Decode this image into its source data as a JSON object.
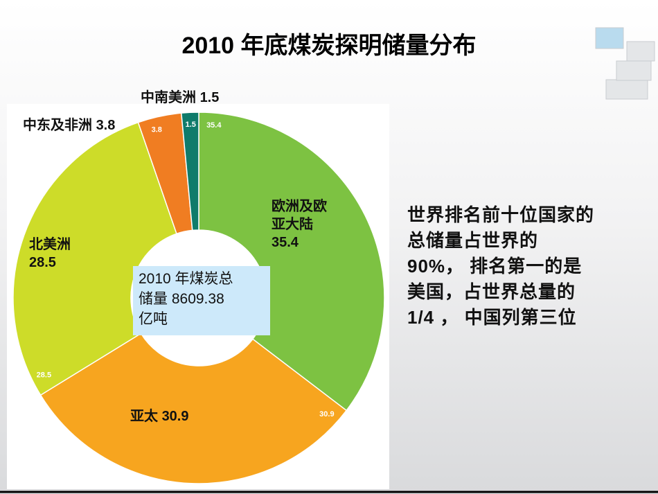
{
  "chart_data": {
    "type": "donut",
    "title": "2010 年底煤炭探明储量分布",
    "categories": [
      "欧洲及欧亚大陆",
      "亚太",
      "北美洲",
      "中东及非洲",
      "中南美洲"
    ],
    "values": [
      35.4,
      30.9,
      28.5,
      3.8,
      1.5
    ],
    "colors": [
      "#7dc242",
      "#f7a51f",
      "#cddc29",
      "#f07d22",
      "#0f7b6b"
    ],
    "center_label": [
      "2010 年煤炭总",
      "储量 8609.38",
      "亿吨"
    ]
  },
  "note": [
    "世界排名前十位国家的",
    "总储量占世界的",
    "90%， 排名第一的是",
    "美国，占世界总量的",
    "1/4 ， 中国列第三位"
  ]
}
